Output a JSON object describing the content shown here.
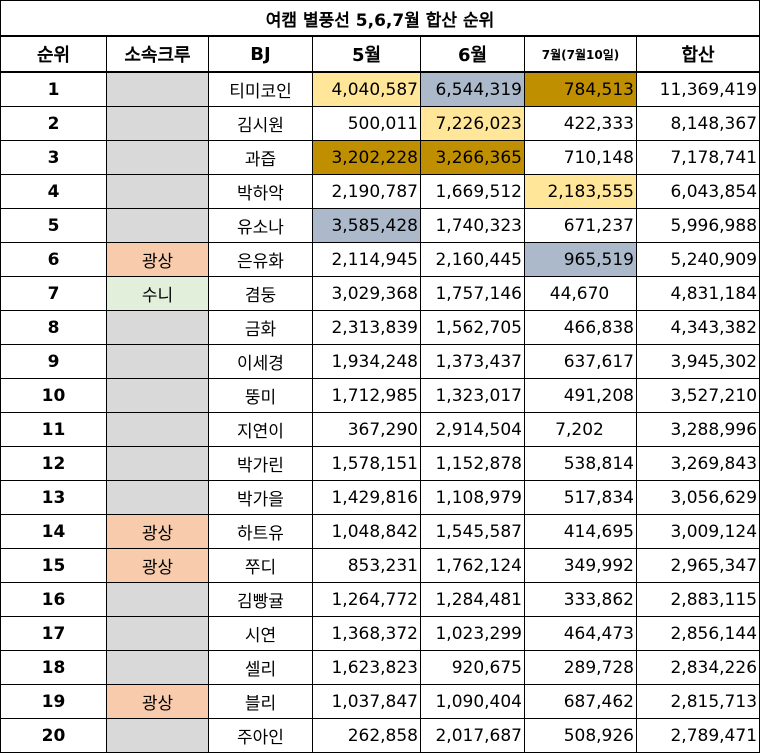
{
  "title": "여캠 별풍선 5,6,7월 합산 순위",
  "headers": {
    "rank": "순위",
    "crew": "소속크루",
    "bj": "BJ",
    "may": "5월",
    "june": "6월",
    "july": "7월(7월10일)",
    "total": "합산"
  },
  "colors": {
    "header_bg": "#ffffff",
    "crew_default": "#d9d9d9",
    "crew_gwangsang": "#f8cbad",
    "crew_suni": "#e2efda",
    "gold_light": "#ffe699",
    "gold_dark": "#bf8f00",
    "blue_gray": "#acb9ca"
  },
  "rows": [
    {
      "rank": "1",
      "crew": "",
      "bj": "티미코인",
      "may": "4,040,587",
      "june": "6,544,319",
      "july": "784,513",
      "total": "11,369,419"
    },
    {
      "rank": "2",
      "crew": "",
      "bj": "김시원",
      "may": "500,011",
      "june": "7,226,023",
      "july": "422,333",
      "total": "8,148,367"
    },
    {
      "rank": "3",
      "crew": "",
      "bj": "과즙",
      "may": "3,202,228",
      "june": "3,266,365",
      "july": "710,148",
      "total": "7,178,741"
    },
    {
      "rank": "4",
      "crew": "",
      "bj": "박하악",
      "may": "2,190,787",
      "june": "1,669,512",
      "july": "2,183,555",
      "total": "6,043,854"
    },
    {
      "rank": "5",
      "crew": "",
      "bj": "유소나",
      "may": "3,585,428",
      "june": "1,740,323",
      "july": "671,237",
      "total": "5,996,988"
    },
    {
      "rank": "6",
      "crew": "광상",
      "bj": "은유화",
      "may": "2,114,945",
      "june": "2,160,445",
      "july": "965,519",
      "total": "5,240,909"
    },
    {
      "rank": "7",
      "crew": "수니",
      "bj": "겸둥",
      "may": "3,029,368",
      "june": "1,757,146",
      "july": "44,670",
      "total": "4,831,184"
    },
    {
      "rank": "8",
      "crew": "",
      "bj": "금화",
      "may": "2,313,839",
      "june": "1,562,705",
      "july": "466,838",
      "total": "4,343,382"
    },
    {
      "rank": "9",
      "crew": "",
      "bj": "이세경",
      "may": "1,934,248",
      "june": "1,373,437",
      "july": "637,617",
      "total": "3,945,302"
    },
    {
      "rank": "10",
      "crew": "",
      "bj": "뚱미",
      "may": "1,712,985",
      "june": "1,323,017",
      "july": "491,208",
      "total": "3,527,210"
    },
    {
      "rank": "11",
      "crew": "",
      "bj": "지연이",
      "may": "367,290",
      "june": "2,914,504",
      "july": "7,202",
      "total": "3,288,996"
    },
    {
      "rank": "12",
      "crew": "",
      "bj": "박가린",
      "may": "1,578,151",
      "june": "1,152,878",
      "july": "538,814",
      "total": "3,269,843"
    },
    {
      "rank": "13",
      "crew": "",
      "bj": "박가을",
      "may": "1,429,816",
      "june": "1,108,979",
      "july": "517,834",
      "total": "3,056,629"
    },
    {
      "rank": "14",
      "crew": "광상",
      "bj": "하트유",
      "may": "1,048,842",
      "june": "1,545,587",
      "july": "414,695",
      "total": "3,009,124"
    },
    {
      "rank": "15",
      "crew": "광상",
      "bj": "쭈디",
      "may": "853,231",
      "june": "1,762,124",
      "july": "349,992",
      "total": "2,965,347"
    },
    {
      "rank": "16",
      "crew": "",
      "bj": "김빵귤",
      "may": "1,264,772",
      "june": "1,284,481",
      "july": "333,862",
      "total": "2,883,115"
    },
    {
      "rank": "17",
      "crew": "",
      "bj": "시연",
      "may": "1,368,372",
      "june": "1,023,299",
      "july": "464,473",
      "total": "2,856,144"
    },
    {
      "rank": "18",
      "crew": "",
      "bj": "셀리",
      "may": "1,623,823",
      "june": "920,675",
      "july": "289,728",
      "total": "2,834,226"
    },
    {
      "rank": "19",
      "crew": "광상",
      "bj": "블리",
      "may": "1,037,847",
      "june": "1,090,404",
      "july": "687,462",
      "total": "2,815,713"
    },
    {
      "rank": "20",
      "crew": "",
      "bj": "주아인",
      "may": "262,858",
      "june": "2,017,687",
      "july": "508,926",
      "total": "2,789,471"
    }
  ]
}
